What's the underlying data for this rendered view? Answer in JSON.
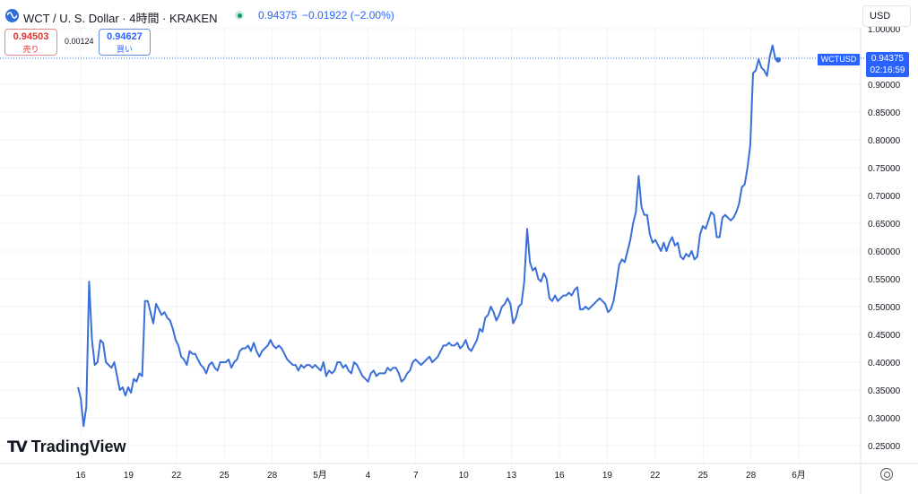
{
  "header": {
    "title": "WCT / U. S. Dollar · 4時間 · KRAKEN",
    "price": "0.94375",
    "change": "−0.01922 (−2.00%)"
  },
  "sell": {
    "price": "0.94503",
    "label": "売り"
  },
  "spread": "0.00124",
  "buy": {
    "price": "0.94627",
    "label": "買い"
  },
  "currency": "USD",
  "brand": "TradingView",
  "price_tag": {
    "value": "0.94375",
    "countdown": "02:16:59",
    "symbol": "WCTUSD"
  },
  "colors": {
    "line": "#3a6fd8",
    "accent": "#2962ff",
    "sell": "#e03131"
  },
  "chart_data": {
    "type": "line",
    "y_ticks": [
      "1.00000",
      "0.95000",
      "0.90000",
      "0.85000",
      "0.80000",
      "0.75000",
      "0.70000",
      "0.65000",
      "0.60000",
      "0.55000",
      "0.50000",
      "0.45000",
      "0.40000",
      "0.35000",
      "0.30000",
      "0.25000"
    ],
    "x_ticks": [
      "16",
      "19",
      "22",
      "25",
      "28",
      "5月",
      "4",
      "7",
      "10",
      "13",
      "16",
      "19",
      "22",
      "25",
      "28",
      "6月"
    ],
    "ylim": [
      0.22,
      1.0
    ],
    "grid": true,
    "series": [
      {
        "values": [
          0.355,
          0.335,
          0.285,
          0.32,
          0.545,
          0.44,
          0.395,
          0.4,
          0.44,
          0.435,
          0.4,
          0.395,
          0.39,
          0.4,
          0.375,
          0.35,
          0.355,
          0.34,
          0.355,
          0.345,
          0.37,
          0.365,
          0.38,
          0.375,
          0.51,
          0.51,
          0.49,
          0.47,
          0.505,
          0.495,
          0.485,
          0.49,
          0.48,
          0.475,
          0.46,
          0.44,
          0.43,
          0.41,
          0.405,
          0.395,
          0.42,
          0.415,
          0.415,
          0.405,
          0.395,
          0.39,
          0.38,
          0.395,
          0.4,
          0.39,
          0.385,
          0.4,
          0.4,
          0.4,
          0.405,
          0.39,
          0.4,
          0.405,
          0.42,
          0.425,
          0.425,
          0.43,
          0.42,
          0.435,
          0.42,
          0.41,
          0.42,
          0.425,
          0.43,
          0.44,
          0.43,
          0.425,
          0.43,
          0.425,
          0.415,
          0.405,
          0.4,
          0.395,
          0.395,
          0.385,
          0.395,
          0.39,
          0.395,
          0.395,
          0.39,
          0.395,
          0.39,
          0.385,
          0.4,
          0.375,
          0.385,
          0.38,
          0.385,
          0.4,
          0.4,
          0.39,
          0.395,
          0.385,
          0.38,
          0.4,
          0.395,
          0.385,
          0.375,
          0.37,
          0.365,
          0.38,
          0.385,
          0.375,
          0.38,
          0.38,
          0.38,
          0.39,
          0.385,
          0.39,
          0.39,
          0.38,
          0.365,
          0.37,
          0.38,
          0.385,
          0.4,
          0.405,
          0.4,
          0.395,
          0.4,
          0.405,
          0.41,
          0.4,
          0.405,
          0.41,
          0.42,
          0.43,
          0.43,
          0.435,
          0.43,
          0.43,
          0.435,
          0.425,
          0.43,
          0.44,
          0.425,
          0.42,
          0.43,
          0.44,
          0.46,
          0.455,
          0.48,
          0.485,
          0.5,
          0.49,
          0.475,
          0.485,
          0.5,
          0.505,
          0.515,
          0.505,
          0.47,
          0.48,
          0.5,
          0.505,
          0.545,
          0.64,
          0.58,
          0.565,
          0.57,
          0.55,
          0.545,
          0.56,
          0.55,
          0.515,
          0.51,
          0.52,
          0.51,
          0.515,
          0.52,
          0.52,
          0.525,
          0.52,
          0.53,
          0.535,
          0.495,
          0.495,
          0.5,
          0.495,
          0.5,
          0.505,
          0.51,
          0.515,
          0.51,
          0.505,
          0.49,
          0.495,
          0.51,
          0.54,
          0.575,
          0.585,
          0.58,
          0.6,
          0.62,
          0.65,
          0.67,
          0.735,
          0.68,
          0.665,
          0.665,
          0.63,
          0.615,
          0.62,
          0.61,
          0.6,
          0.615,
          0.6,
          0.615,
          0.625,
          0.61,
          0.615,
          0.59,
          0.585,
          0.595,
          0.59,
          0.6,
          0.585,
          0.59,
          0.63,
          0.645,
          0.64,
          0.655,
          0.67,
          0.665,
          0.625,
          0.625,
          0.66,
          0.665,
          0.66,
          0.655,
          0.66,
          0.67,
          0.685,
          0.715,
          0.72,
          0.75,
          0.79,
          0.92,
          0.925,
          0.945,
          0.93,
          0.925,
          0.915,
          0.95,
          0.97,
          0.945,
          0.944
        ],
        "x_start_day": 15.85,
        "x_end_day": 44.45
      }
    ]
  }
}
